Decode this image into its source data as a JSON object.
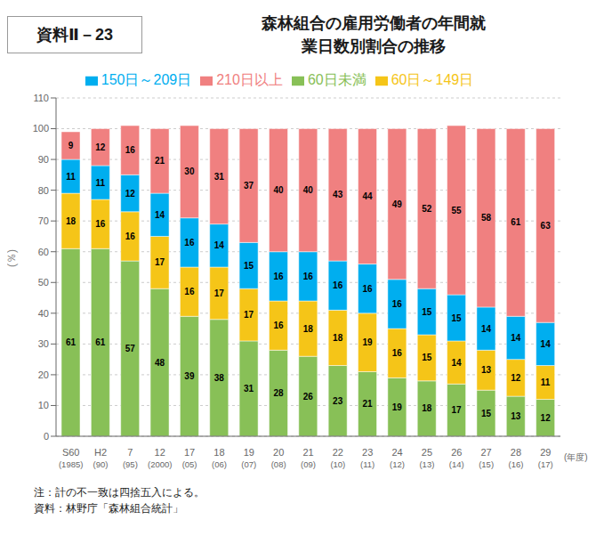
{
  "chart_data": {
    "type": "bar",
    "title": "森林組合の雇用労働者の年間就\n業日数別割合の推移",
    "annotations": [
      "資料Ⅱ－23",
      "注：計の不一致は四捨五入による。",
      "資料：林野庁「森林組合統計」"
    ],
    "x_label": "(年度)",
    "y_label": "(％)",
    "categories": [
      "S60\n(1985)",
      "H2\n(90)",
      "7\n(95)",
      "12\n(2000)",
      "17\n(05)",
      "18\n(06)",
      "19\n(07)",
      "20\n(08)",
      "21\n(09)",
      "22\n(10)",
      "23\n(11)",
      "24\n(12)",
      "25\n(13)",
      "26\n(14)",
      "27\n(15)",
      "28\n(16)",
      "29\n(17)"
    ],
    "series": [
      {
        "name": "60日未満",
        "color": "#88C057",
        "values": [
          61,
          61,
          57,
          48,
          39,
          38,
          31,
          28,
          26,
          23,
          21,
          19,
          18,
          17,
          15,
          13,
          12
        ]
      },
      {
        "name": "60日～149日",
        "color": "#F5C518",
        "values": [
          18,
          16,
          16,
          17,
          16,
          17,
          17,
          16,
          18,
          18,
          19,
          16,
          15,
          14,
          13,
          12,
          11
        ]
      },
      {
        "name": "150日～209日",
        "color": "#00AEEF",
        "values": [
          11,
          11,
          12,
          14,
          16,
          14,
          15,
          16,
          16,
          16,
          16,
          16,
          15,
          15,
          14,
          14,
          14
        ]
      },
      {
        "name": "210日以上",
        "color": "#F08080",
        "values": [
          9,
          12,
          16,
          21,
          30,
          31,
          37,
          40,
          40,
          43,
          44,
          49,
          52,
          55,
          58,
          61,
          63
        ]
      }
    ],
    "stacked": true,
    "data_labels": true,
    "grid": true,
    "legend": "top",
    "ylim": [
      0,
      110
    ],
    "yticks": [
      0,
      10,
      20,
      30,
      40,
      50,
      60,
      70,
      80,
      90,
      100,
      110
    ]
  }
}
